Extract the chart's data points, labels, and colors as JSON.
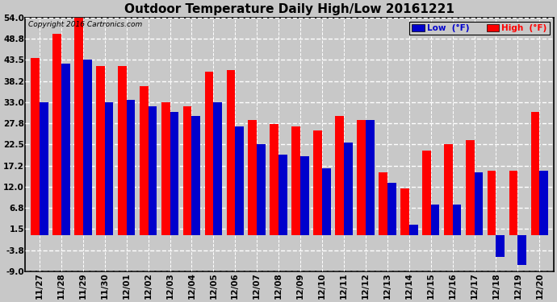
{
  "title": "Outdoor Temperature Daily High/Low 20161221",
  "copyright": "Copyright 2016 Cartronics.com",
  "dates": [
    "11/27",
    "11/28",
    "11/29",
    "11/30",
    "12/01",
    "12/02",
    "12/03",
    "12/04",
    "12/05",
    "12/06",
    "12/07",
    "12/08",
    "12/09",
    "12/10",
    "12/11",
    "12/12",
    "12/13",
    "12/14",
    "12/15",
    "12/16",
    "12/17",
    "12/18",
    "12/19",
    "12/20"
  ],
  "high": [
    44.0,
    50.0,
    54.5,
    42.0,
    42.0,
    37.0,
    33.0,
    32.0,
    40.5,
    41.0,
    28.5,
    27.5,
    27.0,
    26.0,
    29.5,
    28.5,
    15.5,
    11.5,
    21.0,
    22.5,
    23.5,
    16.0,
    16.0,
    30.5
  ],
  "low": [
    33.0,
    42.5,
    43.5,
    33.0,
    33.5,
    32.0,
    30.5,
    29.5,
    33.0,
    27.0,
    22.5,
    20.0,
    19.5,
    16.5,
    23.0,
    28.5,
    13.0,
    2.5,
    7.5,
    7.5,
    15.5,
    -5.5,
    -7.5,
    16.0
  ],
  "ylim": [
    -9.0,
    54.0
  ],
  "yticks": [
    -9.0,
    -3.8,
    1.5,
    6.8,
    12.0,
    17.2,
    22.5,
    27.8,
    33.0,
    38.2,
    43.5,
    48.8,
    54.0
  ],
  "bar_width": 0.4,
  "high_color": "#ff0000",
  "low_color": "#0000cc",
  "bg_color": "#c8c8c8",
  "plot_bg_color": "#c8c8c8",
  "grid_color": "#ffffff",
  "title_fontsize": 11,
  "tick_fontsize": 7.5,
  "copyright_fontsize": 6.5,
  "legend_low_label": "Low  (°F)",
  "legend_high_label": "High  (°F)"
}
